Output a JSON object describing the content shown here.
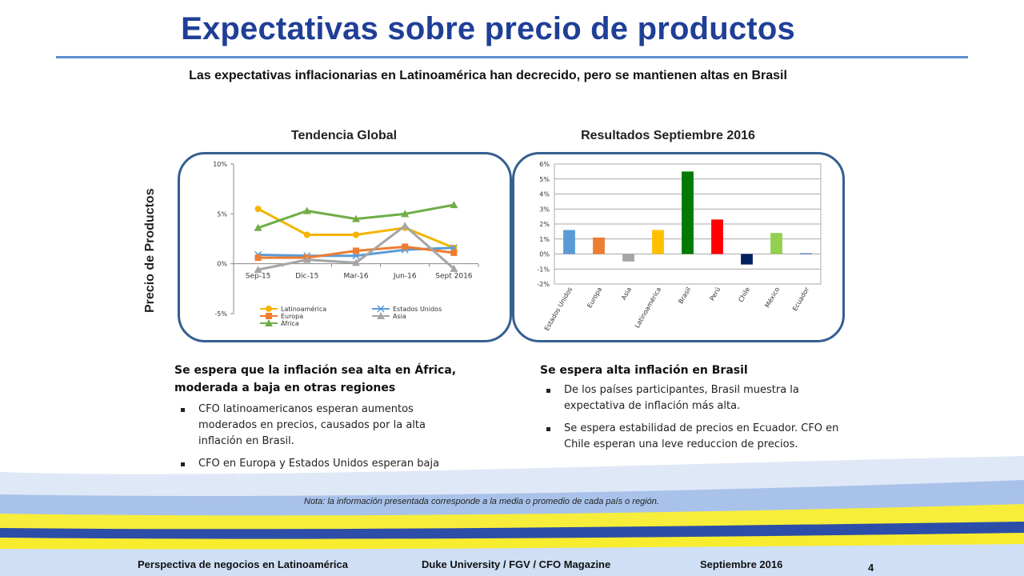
{
  "header": {
    "title": "Expectativas sobre precio de productos",
    "subtitle": "Las expectativas inflacionarias en Latinoamérica han decrecido, pero se mantienen altas en Brasil"
  },
  "side_label": "Precio de Productos",
  "colors": {
    "title": "#1f3f97",
    "panel_border": "#355f91"
  },
  "chart_data": [
    {
      "type": "line",
      "title": "Tendencia Global",
      "categories": [
        "Sep-15",
        "Dic-15",
        "Mar-16",
        "Jun-16",
        "Sept 2016"
      ],
      "yticks": [
        "10%",
        "5%",
        "0%",
        "-5%"
      ],
      "ylim": [
        -5,
        10
      ],
      "grid": false,
      "legend_position": "bottom",
      "series": [
        {
          "name": "Latinoamérica",
          "color": "#f5b400",
          "marker": "circle",
          "values": [
            5.5,
            2.9,
            2.9,
            3.6,
            1.6
          ]
        },
        {
          "name": "Estados Unidos",
          "color": "#5b9bd5",
          "marker": "x",
          "values": [
            0.9,
            0.8,
            0.8,
            1.4,
            1.6
          ]
        },
        {
          "name": "Europa",
          "color": "#ed7d31",
          "marker": "square",
          "values": [
            0.6,
            0.6,
            1.3,
            1.7,
            1.1
          ]
        },
        {
          "name": "Asia",
          "color": "#a5a5a5",
          "marker": "triangle",
          "values": [
            -0.6,
            0.4,
            0.1,
            3.8,
            -0.5
          ]
        },
        {
          "name": "África",
          "color": "#70ad47",
          "marker": "triangle",
          "values": [
            3.6,
            5.3,
            4.5,
            5.0,
            5.9
          ]
        }
      ]
    },
    {
      "type": "bar",
      "title": "Resultados Septiembre 2016",
      "categories": [
        "Estados Unidos",
        "Europa",
        "Asia",
        "Latinoamérica",
        "Brasil",
        "Perú",
        "Chile",
        "México",
        "Ecuador"
      ],
      "values": [
        1.6,
        1.1,
        -0.5,
        1.6,
        5.5,
        2.3,
        -0.7,
        1.4,
        0.05
      ],
      "colors": [
        "#5b9bd5",
        "#ed7d31",
        "#a5a5a5",
        "#ffc000",
        "#007a00",
        "#ff0000",
        "#002060",
        "#92d050",
        "#4472c4"
      ],
      "yticks": [
        "6%",
        "5%",
        "4%",
        "3%",
        "2%",
        "1%",
        "0%",
        "-1%",
        "-2%"
      ],
      "ylim": [
        -2,
        6
      ],
      "grid": true
    }
  ],
  "left_text": {
    "heading": "Se espera que la inflación sea alta en África, moderada a baja en otras regiones",
    "bullets": [
      "CFO latinoamericanos esperan aumentos moderados en precios, causados por la alta inflación en Brasil.",
      "CFO en Europa y Estados Unidos esperan baja inflación. Asia estima una baja en precios."
    ]
  },
  "right_text": {
    "heading": "Se espera alta inflación en Brasil",
    "bullets": [
      "De los países participantes, Brasil muestra la expectativa de inflación más alta.",
      "Se espera estabilidad de precios en Ecuador. CFO en Chile esperan una leve reduccion de precios."
    ]
  },
  "note": "Nota: la información presentada corresponde a la media o promedio de cada país o región.",
  "footer": {
    "left": "Perspectiva de negocios en Latinoamérica",
    "center": "Duke University / FGV / CFO Magazine",
    "right": "Septiembre 2016",
    "page": "4"
  }
}
